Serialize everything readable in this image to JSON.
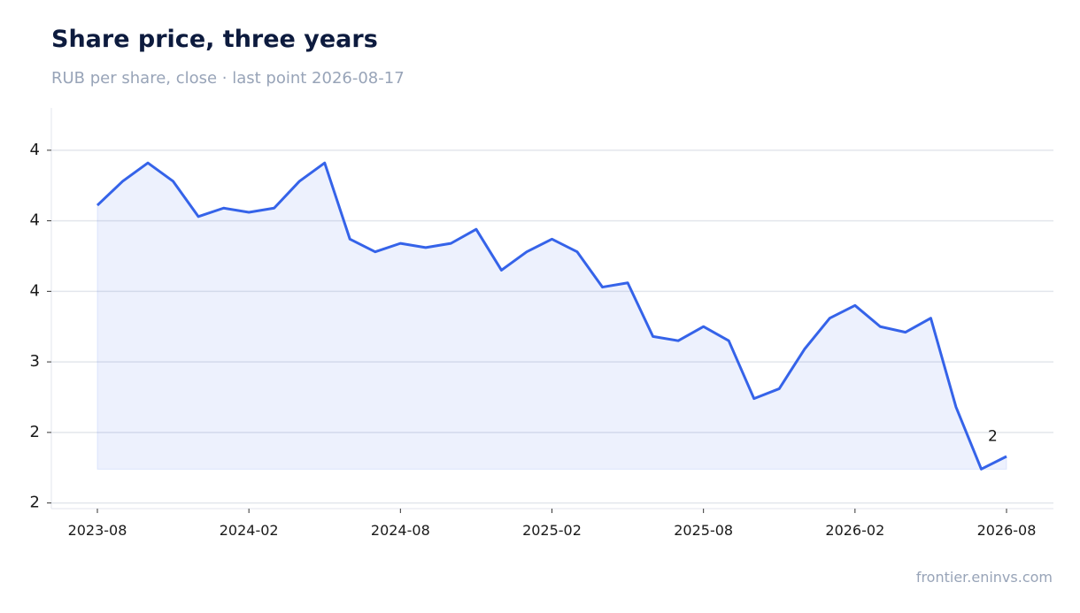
{
  "chart_data": {
    "type": "line",
    "title": "Share price, three years",
    "subtitle": "RUB per share, close · last point 2026-08-17",
    "source": "frontier.eninvs.com",
    "x": [
      "2023-08",
      "2023-09",
      "2023-10",
      "2023-11",
      "2023-12",
      "2024-01",
      "2024-02",
      "2024-03",
      "2024-04",
      "2024-05",
      "2024-06",
      "2024-07",
      "2024-08",
      "2024-09",
      "2024-10",
      "2024-11",
      "2024-12",
      "2025-01",
      "2025-02",
      "2025-03",
      "2025-04",
      "2025-05",
      "2025-06",
      "2025-07",
      "2025-08",
      "2025-09",
      "2025-10",
      "2025-11",
      "2025-12",
      "2026-01",
      "2026-02",
      "2026-03",
      "2026-04",
      "2026-05",
      "2026-06",
      "2026-07",
      "2026-08"
    ],
    "series": [
      {
        "name": "Close",
        "color": "#3563e9",
        "values": [
          4.11,
          4.28,
          4.41,
          4.28,
          4.03,
          4.09,
          4.06,
          4.09,
          4.28,
          4.41,
          3.87,
          3.78,
          3.84,
          3.81,
          3.84,
          3.94,
          3.65,
          3.78,
          3.87,
          3.78,
          3.53,
          3.56,
          3.18,
          3.15,
          3.25,
          3.15,
          2.74,
          2.81,
          3.09,
          3.31,
          3.4,
          3.25,
          3.21,
          3.31,
          2.68,
          2.24,
          2.33
        ]
      }
    ],
    "xticks": [
      "2023-08",
      "2024-02",
      "2024-08",
      "2025-02",
      "2025-08",
      "2026-02",
      "2026-08"
    ],
    "ylim": [
      1.96,
      4.8
    ],
    "yticks": [
      {
        "value": 2.0,
        "label": "2"
      },
      {
        "value": 2.5,
        "label": "2"
      },
      {
        "value": 3.0,
        "label": "3"
      },
      {
        "value": 3.5,
        "label": "4"
      },
      {
        "value": 4.0,
        "label": "4"
      },
      {
        "value": 4.5,
        "label": "4"
      }
    ],
    "grid": true,
    "annotations": [
      {
        "x": "2026-07",
        "y": 2.47,
        "label": "2"
      }
    ]
  }
}
